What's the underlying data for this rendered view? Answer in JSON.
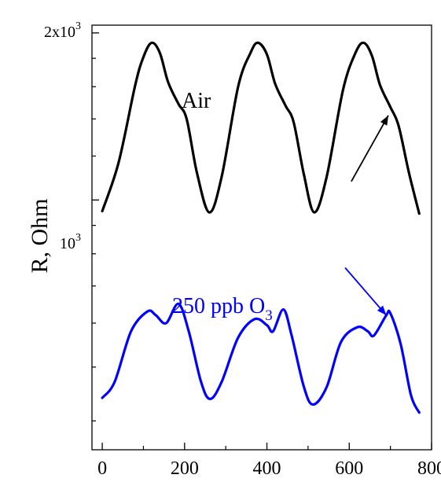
{
  "chart_data": {
    "type": "line",
    "title": "",
    "xlabel": "",
    "ylabel": "R, Ohm",
    "y_scale": "log",
    "xlim": [
      -25,
      800
    ],
    "ylim_log10": [
      2.55,
      3.315
    ],
    "x_ticks": [
      {
        "value": 0,
        "label": "0"
      },
      {
        "value": 200,
        "label": "200"
      },
      {
        "value": 400,
        "label": "400"
      },
      {
        "value": 600,
        "label": "600"
      },
      {
        "value": 800,
        "label": "800"
      }
    ],
    "y_tick_labels": {
      "top": {
        "value": 2000,
        "base": "2x10",
        "exp": "3"
      },
      "mid": {
        "value": 1000,
        "base": "10",
        "exp": "3"
      }
    },
    "series": [
      {
        "name": "Air",
        "color": "#000000",
        "points": [
          [
            0,
            955
          ],
          [
            40,
            1170
          ],
          [
            80,
            1610
          ],
          [
            100,
            1810
          ],
          [
            120,
            1920
          ],
          [
            140,
            1840
          ],
          [
            160,
            1630
          ],
          [
            185,
            1490
          ],
          [
            205,
            1400
          ],
          [
            230,
            1120
          ],
          [
            260,
            950
          ],
          [
            290,
            1100
          ],
          [
            330,
            1600
          ],
          [
            360,
            1840
          ],
          [
            378,
            1920
          ],
          [
            400,
            1830
          ],
          [
            420,
            1620
          ],
          [
            445,
            1480
          ],
          [
            465,
            1380
          ],
          [
            490,
            1110
          ],
          [
            515,
            950
          ],
          [
            545,
            1100
          ],
          [
            585,
            1580
          ],
          [
            615,
            1840
          ],
          [
            635,
            1920
          ],
          [
            655,
            1820
          ],
          [
            675,
            1610
          ],
          [
            700,
            1470
          ],
          [
            720,
            1360
          ],
          [
            745,
            1120
          ],
          [
            770,
            945
          ]
        ]
      },
      {
        "name": "250 ppb O3",
        "color": "#0000ff",
        "points": [
          [
            0,
            440
          ],
          [
            30,
            470
          ],
          [
            70,
            580
          ],
          [
            110,
            630
          ],
          [
            130,
            620
          ],
          [
            155,
            600
          ],
          [
            185,
            650
          ],
          [
            210,
            580
          ],
          [
            240,
            470
          ],
          [
            262,
            438
          ],
          [
            290,
            470
          ],
          [
            330,
            565
          ],
          [
            370,
            610
          ],
          [
            400,
            595
          ],
          [
            415,
            580
          ],
          [
            440,
            635
          ],
          [
            460,
            570
          ],
          [
            490,
            460
          ],
          [
            512,
            428
          ],
          [
            545,
            460
          ],
          [
            580,
            555
          ],
          [
            620,
            590
          ],
          [
            645,
            580
          ],
          [
            660,
            570
          ],
          [
            690,
            620
          ],
          [
            700,
            625
          ],
          [
            725,
            550
          ],
          [
            750,
            445
          ],
          [
            770,
            414
          ]
        ]
      }
    ],
    "annotations": {
      "air_label": "Air",
      "ozone_label": {
        "text": "250 ppb O",
        "subscript": "3"
      },
      "arrows": [
        {
          "from": [
            605,
            1080
          ],
          "to": [
            695,
            1420
          ],
          "color": "#000000"
        },
        {
          "from": [
            590,
            755
          ],
          "to": [
            690,
            620
          ],
          "color": "#0000ff"
        }
      ]
    }
  }
}
